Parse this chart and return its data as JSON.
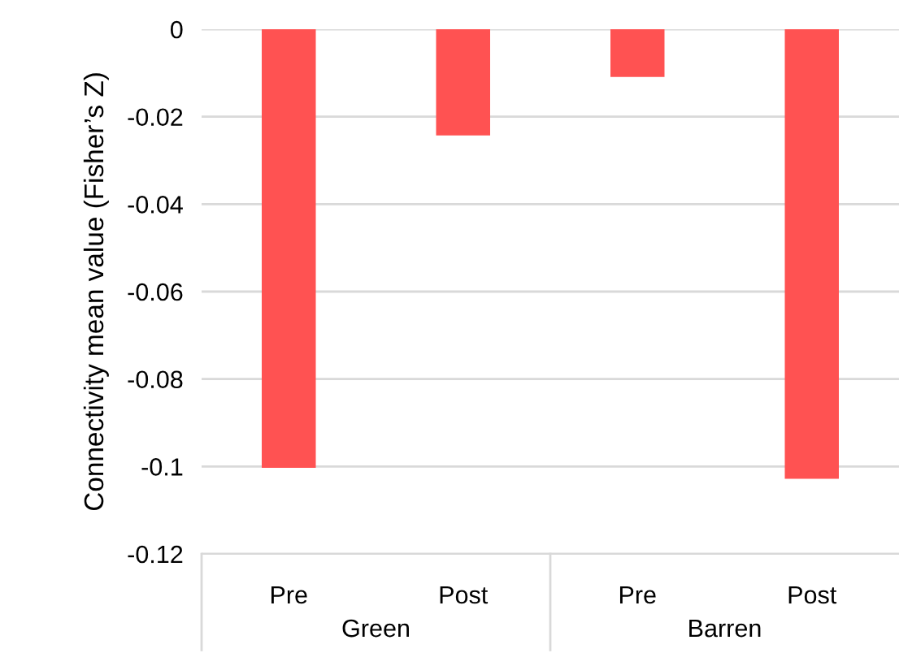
{
  "chart_data": {
    "type": "bar",
    "ylabel": "Connectivity mean value (Fisher’s Z)",
    "categories": [
      "Pre",
      "Post",
      "Pre",
      "Post"
    ],
    "values": [
      -0.1003,
      -0.0243,
      -0.0109,
      -0.1028
    ],
    "color": "#ff5252",
    "ylim": [
      -0.12,
      0
    ],
    "yticks": [
      {
        "value": -0.12,
        "label": "-0.12"
      },
      {
        "value": -0.1,
        "label": "-0.1"
      },
      {
        "value": -0.08,
        "label": "-0.08"
      },
      {
        "value": -0.06,
        "label": "-0.06"
      },
      {
        "value": -0.04,
        "label": "-0.04"
      },
      {
        "value": -0.02,
        "label": "-0.02"
      },
      0
    ],
    "grid": "y",
    "annotations": [
      "Green",
      "Barren"
    ]
  }
}
